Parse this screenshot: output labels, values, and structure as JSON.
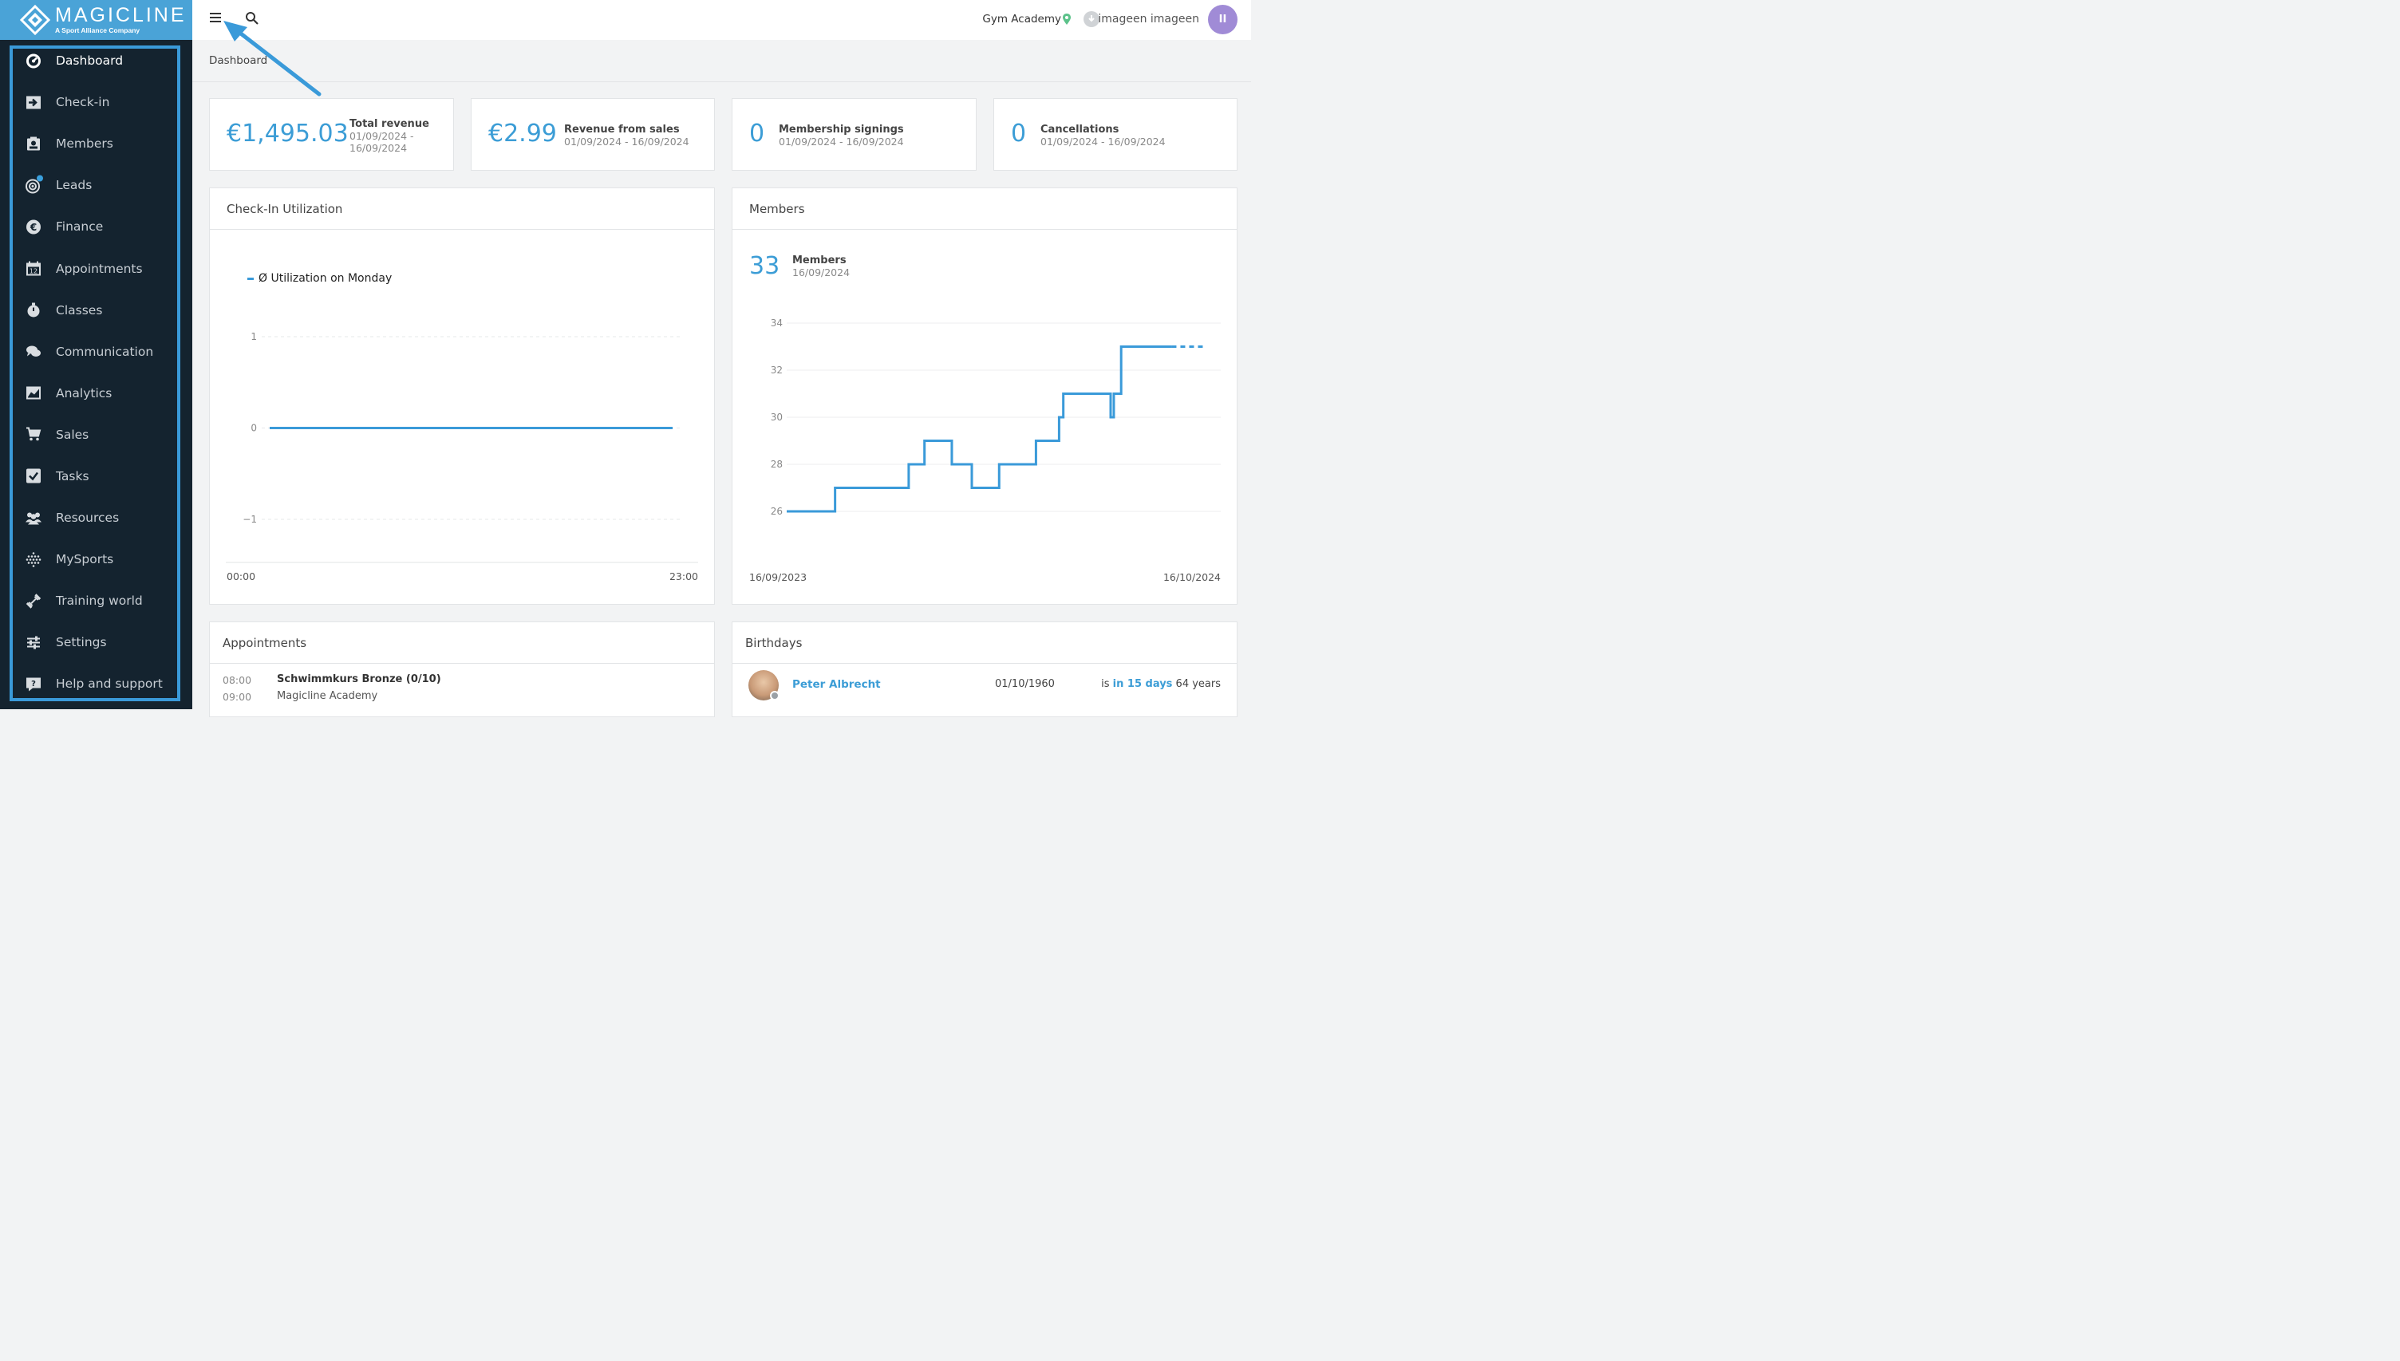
{
  "brand": {
    "name": "MAGICLINE",
    "tagline": "A Sport Alliance Company"
  },
  "nav": [
    {
      "label": "Dashboard",
      "icon": "dashboard-icon",
      "active": true
    },
    {
      "label": "Check-in",
      "icon": "checkin-icon"
    },
    {
      "label": "Members",
      "icon": "members-icon"
    },
    {
      "label": "Leads",
      "icon": "leads-icon"
    },
    {
      "label": "Finance",
      "icon": "euro-icon"
    },
    {
      "label": "Appointments",
      "icon": "calendar-icon"
    },
    {
      "label": "Classes",
      "icon": "stopwatch-icon"
    },
    {
      "label": "Communication",
      "icon": "chat-icon"
    },
    {
      "label": "Analytics",
      "icon": "analytics-icon"
    },
    {
      "label": "Sales",
      "icon": "cart-icon"
    },
    {
      "label": "Tasks",
      "icon": "check-square-icon"
    },
    {
      "label": "Resources",
      "icon": "group-icon"
    },
    {
      "label": "MySports",
      "icon": "dots-grid-icon"
    },
    {
      "label": "Training world",
      "icon": "dumbbell-icon"
    },
    {
      "label": "Settings",
      "icon": "sliders-icon"
    },
    {
      "label": "Help and support",
      "icon": "help-icon"
    }
  ],
  "topbar": {
    "studio": "Gym Academy",
    "user": "imageen imageen",
    "avatar_initials": "II"
  },
  "breadcrumb": "Dashboard",
  "kpis": [
    {
      "value": "€1,495.03",
      "title": "Total revenue",
      "date_line1": "01/09/2024 -",
      "date_line2": "16/09/2024"
    },
    {
      "value": "€2.99",
      "title": "Revenue from sales",
      "date": "01/09/2024 - 16/09/2024"
    },
    {
      "value": "0",
      "title": "Membership signings",
      "date": "01/09/2024 - 16/09/2024"
    },
    {
      "value": "0",
      "title": "Cancellations",
      "date": "01/09/2024 - 16/09/2024"
    }
  ],
  "checkin_panel": {
    "title": "Check-In Utilization",
    "chart_data": {
      "type": "line",
      "legend": "Ø Utilization on Monday",
      "x_start_label": "00:00",
      "x_end_label": "23:00",
      "y_ticks": [
        "1",
        "0",
        "−1"
      ],
      "ylim": [
        -1,
        1
      ],
      "series": [
        {
          "name": "Ø Utilization on Monday",
          "x": [
            "00:00",
            "23:00"
          ],
          "y": [
            0,
            0
          ]
        }
      ]
    }
  },
  "members_panel": {
    "title": "Members",
    "count": "33",
    "count_label": "Members",
    "count_date": "16/09/2024",
    "chart_data": {
      "type": "line",
      "step": true,
      "x_start_label": "16/09/2023",
      "x_end_label": "16/10/2024",
      "y_ticks": [
        "34",
        "32",
        "30",
        "28",
        "26"
      ],
      "ylim": [
        25,
        34
      ],
      "series": [
        {
          "x": [
            "2023-09-16",
            "2023-11-01",
            "2024-01-10",
            "2024-01-25",
            "2024-02-20",
            "2024-03-10",
            "2024-04-05",
            "2024-05-10",
            "2024-06-01",
            "2024-06-05",
            "2024-06-10",
            "2024-07-20",
            "2024-07-23",
            "2024-07-30",
            "2024-08-05",
            "2024-09-16"
          ],
          "y": [
            26,
            27,
            28,
            29,
            28,
            27,
            28,
            29,
            30,
            31,
            31,
            30,
            31,
            33,
            33,
            33
          ]
        }
      ]
    }
  },
  "appointments_panel": {
    "title": "Appointments",
    "items": [
      {
        "start": "08:00",
        "end": "09:00",
        "title": "Schwimmkurs Bronze (0/10)",
        "location": "Magicline Academy"
      }
    ]
  },
  "birthdays_panel": {
    "title": "Birthdays",
    "items": [
      {
        "name": "Peter Albrecht",
        "date": "01/10/1960",
        "prefix": "is",
        "when": "in 15 days",
        "age": "64 years"
      }
    ]
  },
  "colors": {
    "accent": "#3c9dd6",
    "sidebar": "#14232f",
    "brand": "#4aa3d7",
    "avatar": "#a08bd6"
  }
}
